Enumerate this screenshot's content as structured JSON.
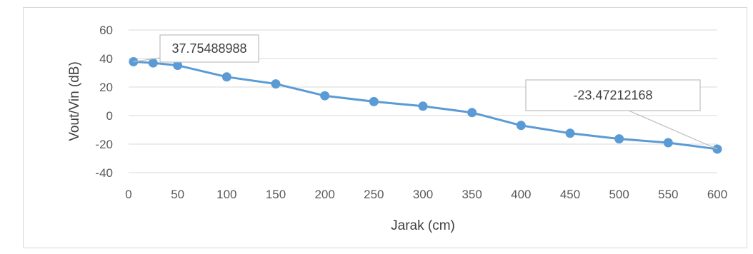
{
  "chart_data": {
    "type": "line",
    "title": "",
    "xlabel": "Jarak (cm)",
    "ylabel": "Vout/Vin (dB)",
    "xlim": [
      0,
      600
    ],
    "ylim": [
      -40,
      60
    ],
    "x_ticks": [
      0,
      50,
      100,
      150,
      200,
      250,
      300,
      350,
      400,
      450,
      500,
      550,
      600
    ],
    "y_ticks": [
      -40,
      -20,
      0,
      20,
      40,
      60
    ],
    "grid": "horizontal",
    "legend": "none",
    "series": [
      {
        "color": "#5b9bd5",
        "x": [
          5,
          25,
          50,
          100,
          150,
          200,
          250,
          300,
          350,
          400,
          450,
          500,
          550,
          600
        ],
        "y": [
          37.75488988,
          36.9,
          35.2,
          27.1,
          22.2,
          13.9,
          9.8,
          6.6,
          2.1,
          -6.9,
          -12.4,
          -16.3,
          -19.0,
          -23.47212168
        ]
      }
    ],
    "annotations": [
      {
        "text": "37.75488988",
        "x": 5,
        "y": 37.75488988
      },
      {
        "text": "-23.47212168",
        "x": 600,
        "y": -23.47212168
      }
    ]
  }
}
